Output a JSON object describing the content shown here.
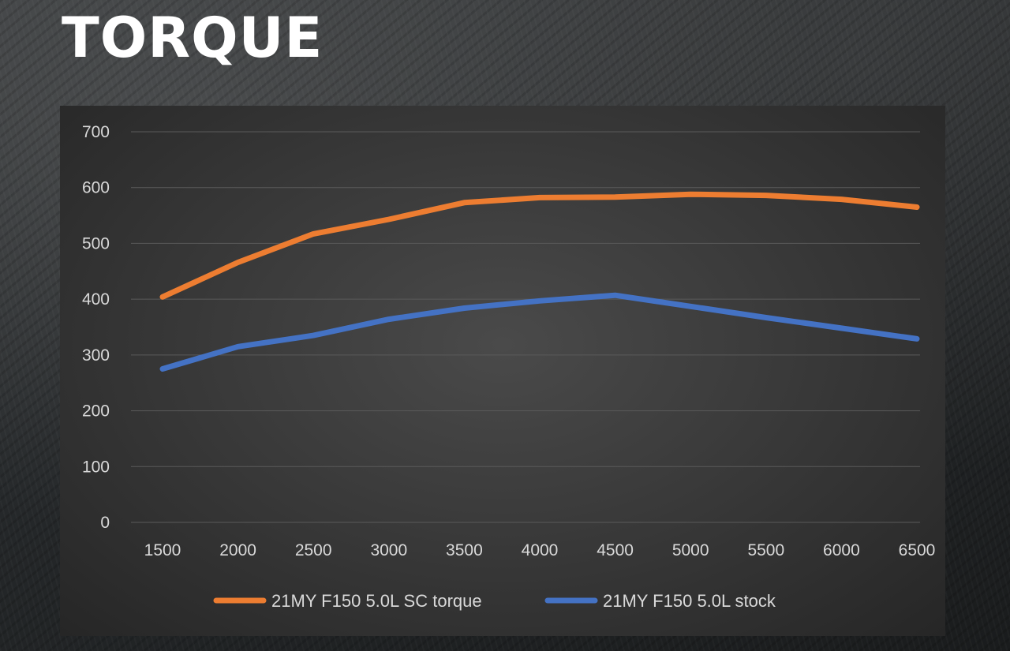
{
  "title": "TORQUE",
  "chart_data": {
    "type": "line",
    "x": [
      1500,
      2000,
      2500,
      3000,
      3500,
      4000,
      4500,
      5000,
      5500,
      6000,
      6500
    ],
    "ylim": [
      0,
      700
    ],
    "yticks": [
      0,
      100,
      200,
      300,
      400,
      500,
      600,
      700
    ],
    "grid": true,
    "legend": "bottom",
    "series": [
      {
        "name": "21MY F150 5.0L SC torque",
        "color": "#ed7d31",
        "values": [
          404,
          466,
          517,
          543,
          573,
          582,
          583,
          588,
          586,
          579,
          565
        ]
      },
      {
        "name": "21MY F150 5.0L stock",
        "color": "#4472c4",
        "values": [
          275,
          315,
          335,
          364,
          384,
          397,
          407,
          387,
          367,
          348,
          329
        ]
      }
    ]
  }
}
